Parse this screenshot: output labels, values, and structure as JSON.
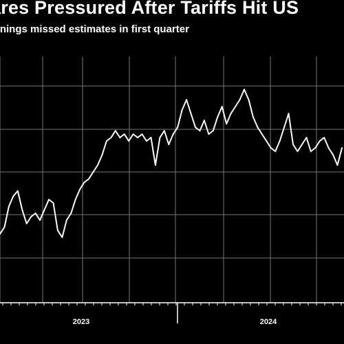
{
  "chart_data": {
    "type": "line",
    "title": "ares Pressured After Tariffs Hit US",
    "subtitle": "rnings missed estimates in first quarter",
    "xlabel": "",
    "ylabel": "",
    "grid": true,
    "background": "#000000",
    "line_color": "#ffffff",
    "grid_color": "#777777",
    "axis_color": "#ffffff",
    "x_tick_labels": [
      "2023",
      "2024"
    ],
    "x": [
      "2022-11-07",
      "2022-11-14",
      "2022-11-21",
      "2022-11-28",
      "2022-12-05",
      "2022-12-12",
      "2022-12-19",
      "2022-12-26",
      "2023-01-02",
      "2023-01-09",
      "2023-01-16",
      "2023-01-23",
      "2023-01-30",
      "2023-02-06",
      "2023-02-13",
      "2023-02-20",
      "2023-02-27",
      "2023-03-06",
      "2023-03-13",
      "2023-03-20",
      "2023-03-27",
      "2023-04-03",
      "2023-04-10",
      "2023-04-17",
      "2023-04-24",
      "2023-05-01",
      "2023-05-08",
      "2023-05-15",
      "2023-05-22",
      "2023-05-29",
      "2023-06-05",
      "2023-06-12",
      "2023-06-19",
      "2023-06-26",
      "2023-07-03",
      "2023-07-10",
      "2023-07-17",
      "2023-07-24",
      "2023-07-31",
      "2023-08-07",
      "2023-08-14",
      "2023-08-21",
      "2023-08-28",
      "2023-09-04",
      "2023-09-11",
      "2023-09-18",
      "2023-09-25",
      "2023-10-02",
      "2023-10-09",
      "2023-10-16",
      "2023-10-23",
      "2023-10-30",
      "2023-11-06",
      "2023-11-13",
      "2023-11-20",
      "2023-11-27",
      "2023-12-04",
      "2023-12-11",
      "2023-12-18",
      "2023-12-25",
      "2024-01-01",
      "2024-01-08",
      "2024-01-15",
      "2024-01-22",
      "2024-01-29",
      "2024-02-05",
      "2024-02-12",
      "2024-02-19",
      "2024-02-26",
      "2024-03-04",
      "2024-03-11",
      "2024-03-18",
      "2024-03-25",
      "2024-04-01",
      "2024-04-08",
      "2024-04-15",
      "2024-04-22",
      "2024-04-29"
    ],
    "series": [
      {
        "values": [
          1.0,
          1.4,
          2.6,
          3.2,
          3.5,
          2.4,
          1.6,
          2.0,
          2.2,
          1.8,
          2.4,
          3.0,
          2.8,
          1.2,
          0.8,
          1.8,
          2.2,
          3.0,
          3.6,
          4.0,
          4.2,
          4.6,
          5.0,
          5.6,
          6.4,
          6.6,
          7.0,
          6.6,
          6.8,
          6.4,
          6.8,
          6.6,
          6.8,
          6.4,
          6.6,
          5.0,
          6.6,
          7.0,
          6.2,
          6.8,
          7.2,
          8.2,
          8.8,
          8.0,
          7.2,
          7.0,
          7.6,
          6.8,
          7.0,
          7.8,
          8.4,
          7.4,
          8.0,
          8.4,
          8.8,
          9.4,
          8.8,
          7.8,
          7.2,
          6.8,
          6.4,
          6.0,
          5.8,
          6.4,
          7.2,
          8.0,
          6.2,
          5.8,
          6.2,
          6.6,
          5.8,
          6.0,
          6.4,
          6.6,
          6.0,
          5.6,
          5.0,
          6.0
        ]
      }
    ],
    "ylim": [
      0,
      10
    ]
  }
}
